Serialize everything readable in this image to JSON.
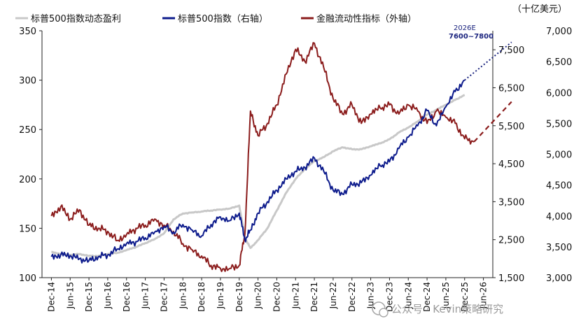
{
  "chart_data": {
    "type": "line",
    "unit_label": "（十亿美元）",
    "legend": [
      {
        "key": "eps",
        "label": "标普500指数动态盈利",
        "color": "#c8c8c8"
      },
      {
        "key": "spx",
        "label": "标普500指数（右轴）",
        "color": "#0d1b8c"
      },
      {
        "key": "liq",
        "label": "金融流动性指标（外轴）",
        "color": "#8b1c1c"
      }
    ],
    "x_ticks": [
      "Dec-14",
      "Jun-15",
      "Dec-15",
      "Jun-16",
      "Dec-16",
      "Jun-17",
      "Dec-17",
      "Jun-18",
      "Dec-18",
      "Jun-19",
      "Dec-19",
      "Jun-20",
      "Dec-20",
      "Jun-21",
      "Dec-21",
      "Jun-22",
      "Dec-22",
      "Jun-23",
      "Dec-23",
      "Jun-24",
      "Dec-24",
      "Jun-25",
      "Dec-25",
      "Jun-26"
    ],
    "axes": {
      "left": {
        "min": 100,
        "max": 350,
        "ticks": [
          "100",
          "150",
          "200",
          "250",
          "300",
          "350"
        ]
      },
      "right": {
        "min": 1500,
        "max": 8000,
        "ticks": [
          "1,500",
          "2,500",
          "3,500",
          "4,500",
          "5,500",
          "6,500",
          "7,500"
        ]
      },
      "outer": {
        "min": 3000,
        "max": 7000,
        "ticks": [
          "3,000",
          "3,500",
          "4,000",
          "4,500",
          "5,000",
          "5,500",
          "6,000",
          "6,500",
          "7,000"
        ]
      }
    },
    "annotation": {
      "label": "2026E",
      "value_text": "7600~7800"
    },
    "series": [
      {
        "key": "eps",
        "axis": "left",
        "points": [
          [
            0,
            126
          ],
          [
            0.5,
            124
          ],
          [
            1,
            123
          ],
          [
            1.5,
            124
          ],
          [
            2,
            122
          ],
          [
            2.5,
            122
          ],
          [
            3,
            124
          ],
          [
            3.5,
            125
          ],
          [
            4,
            128
          ],
          [
            4.5,
            131
          ],
          [
            5,
            135
          ],
          [
            5.5,
            139
          ],
          [
            6,
            145
          ],
          [
            6.5,
            159
          ],
          [
            7,
            165
          ],
          [
            7.5,
            166
          ],
          [
            8,
            167
          ],
          [
            8.5,
            168
          ],
          [
            9,
            169
          ],
          [
            9.5,
            170
          ],
          [
            10,
            173
          ],
          [
            10.3,
            140
          ],
          [
            10.6,
            130
          ],
          [
            11,
            138
          ],
          [
            11.5,
            150
          ],
          [
            12,
            168
          ],
          [
            12.5,
            186
          ],
          [
            13,
            200
          ],
          [
            13.5,
            210
          ],
          [
            14,
            218
          ],
          [
            14.5,
            222
          ],
          [
            15,
            228
          ],
          [
            15.5,
            232
          ],
          [
            16,
            230
          ],
          [
            16.5,
            230
          ],
          [
            17,
            233
          ],
          [
            17.5,
            236
          ],
          [
            18,
            240
          ],
          [
            18.5,
            247
          ],
          [
            19,
            252
          ],
          [
            19.5,
            258
          ],
          [
            20,
            265
          ],
          [
            20.5,
            270
          ],
          [
            21,
            275
          ],
          [
            21.5,
            280
          ],
          [
            22,
            285
          ]
        ]
      },
      {
        "key": "spx",
        "axis": "right",
        "points": [
          [
            0,
            2050
          ],
          [
            0.5,
            2100
          ],
          [
            1,
            2080
          ],
          [
            1.5,
            2000
          ],
          [
            2,
            1950
          ],
          [
            2.5,
            2050
          ],
          [
            3,
            2100
          ],
          [
            3.5,
            2250
          ],
          [
            4,
            2400
          ],
          [
            4.5,
            2450
          ],
          [
            5,
            2550
          ],
          [
            5.5,
            2700
          ],
          [
            6,
            2850
          ],
          [
            6.5,
            2700
          ],
          [
            7,
            2900
          ],
          [
            7.5,
            2750
          ],
          [
            8,
            2600
          ],
          [
            8.5,
            2900
          ],
          [
            9,
            3100
          ],
          [
            9.5,
            3000
          ],
          [
            10,
            3200
          ],
          [
            10.3,
            2500
          ],
          [
            10.6,
            2750
          ],
          [
            11,
            3200
          ],
          [
            11.5,
            3500
          ],
          [
            12,
            3800
          ],
          [
            12.5,
            4100
          ],
          [
            13,
            4300
          ],
          [
            13.5,
            4400
          ],
          [
            14,
            4650
          ],
          [
            14.5,
            4300
          ],
          [
            15,
            3800
          ],
          [
            15.5,
            3700
          ],
          [
            16,
            3950
          ],
          [
            16.5,
            4000
          ],
          [
            17,
            4200
          ],
          [
            17.5,
            4450
          ],
          [
            18,
            4550
          ],
          [
            18.5,
            4900
          ],
          [
            19,
            5200
          ],
          [
            19.5,
            5500
          ],
          [
            20,
            5900
          ],
          [
            20.5,
            5500
          ],
          [
            21,
            6000
          ],
          [
            21.5,
            6400
          ],
          [
            22,
            6700
          ]
        ]
      },
      {
        "key": "spx_forecast",
        "axis": "right",
        "dashed": true,
        "points": [
          [
            22,
            6700
          ],
          [
            24.5,
            7700
          ]
        ]
      },
      {
        "key": "liq",
        "axis": "outer",
        "points": [
          [
            0,
            4000
          ],
          [
            0.5,
            4150
          ],
          [
            1,
            3950
          ],
          [
            1.5,
            4100
          ],
          [
            2,
            3850
          ],
          [
            2.5,
            3800
          ],
          [
            3,
            3750
          ],
          [
            3.5,
            3600
          ],
          [
            4,
            3700
          ],
          [
            4.5,
            3800
          ],
          [
            5,
            3850
          ],
          [
            5.5,
            3950
          ],
          [
            6,
            3850
          ],
          [
            6.5,
            3750
          ],
          [
            7,
            3550
          ],
          [
            7.5,
            3450
          ],
          [
            8,
            3350
          ],
          [
            8.5,
            3200
          ],
          [
            9,
            3150
          ],
          [
            9.5,
            3150
          ],
          [
            10,
            3200
          ],
          [
            10.3,
            3700
          ],
          [
            10.6,
            5700
          ],
          [
            11,
            5300
          ],
          [
            11.5,
            5500
          ],
          [
            12,
            5800
          ],
          [
            12.5,
            6300
          ],
          [
            13,
            6700
          ],
          [
            13.5,
            6500
          ],
          [
            14,
            6800
          ],
          [
            14.5,
            6400
          ],
          [
            15,
            5900
          ],
          [
            15.5,
            5650
          ],
          [
            16,
            5800
          ],
          [
            16.5,
            5500
          ],
          [
            17,
            5650
          ],
          [
            17.5,
            5750
          ],
          [
            18,
            5800
          ],
          [
            18.5,
            5650
          ],
          [
            19,
            5800
          ],
          [
            19.5,
            5700
          ],
          [
            20,
            5500
          ],
          [
            20.5,
            5700
          ],
          [
            21,
            5600
          ],
          [
            21.5,
            5500
          ],
          [
            22,
            5250
          ],
          [
            22.5,
            5200
          ]
        ]
      },
      {
        "key": "liq_forecast",
        "axis": "outer",
        "dashed": true,
        "points": [
          [
            22.5,
            5200
          ],
          [
            24.5,
            5850
          ]
        ]
      }
    ]
  },
  "watermark": "公众号 · Kevin策略研究"
}
